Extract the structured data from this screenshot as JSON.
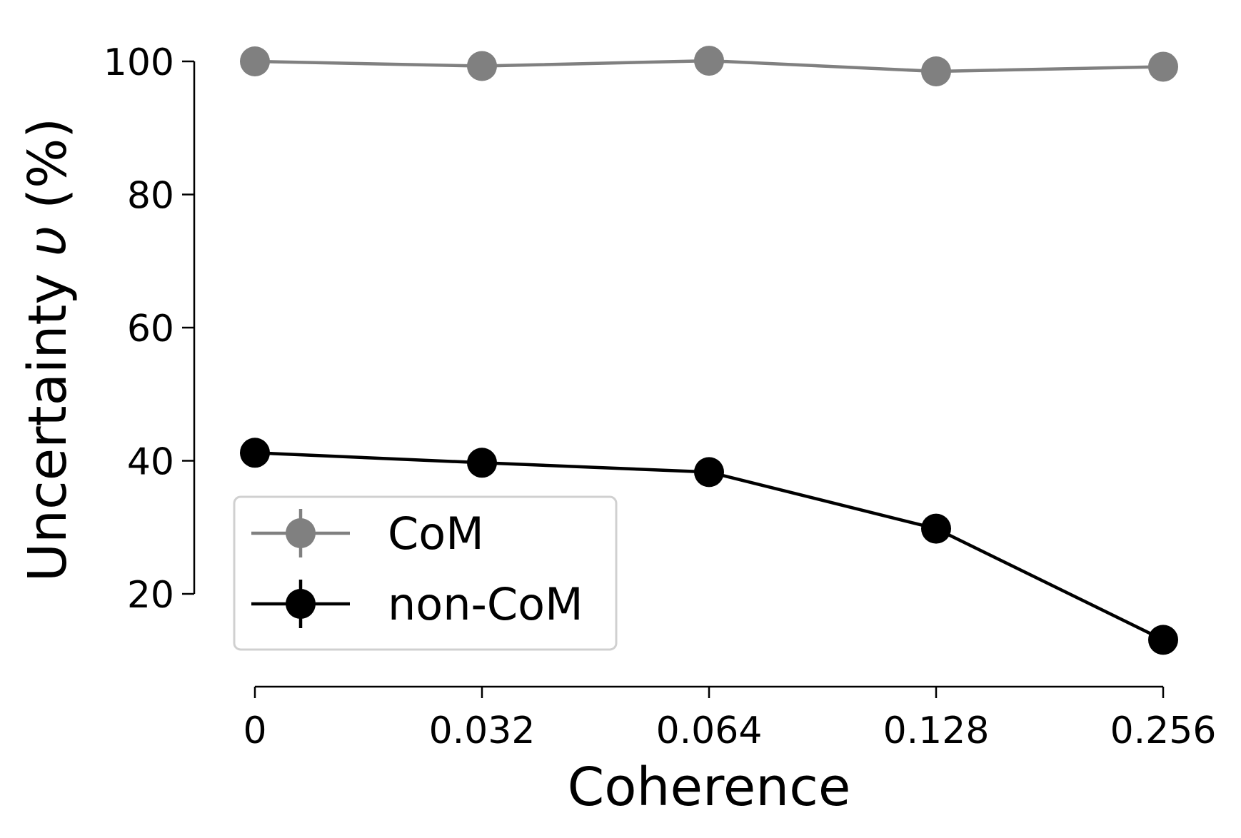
{
  "chart_data": {
    "type": "line",
    "title": "",
    "xlabel": "Coherence",
    "ylabel_prefix": "Uncertainty ",
    "ylabel_symbol": "υ",
    "ylabel_suffix": " (%)",
    "categories": [
      "0",
      "0.032",
      "0.064",
      "0.128",
      "0.256"
    ],
    "y_ticks": [
      "20",
      "40",
      "60",
      "80",
      "100"
    ],
    "y_tick_values": [
      20,
      40,
      60,
      80,
      100
    ],
    "ylim": [
      10.5,
      104
    ],
    "grid": false,
    "legend_position": "lower-left",
    "series": [
      {
        "name": "CoM",
        "color": "#808080",
        "marker": "circle",
        "values": [
          100.0,
          99.3,
          100.1,
          98.5,
          99.2
        ]
      },
      {
        "name": "non-CoM",
        "color": "#000000",
        "marker": "circle",
        "values": [
          41.2,
          39.7,
          38.3,
          29.8,
          13.1
        ]
      }
    ]
  }
}
